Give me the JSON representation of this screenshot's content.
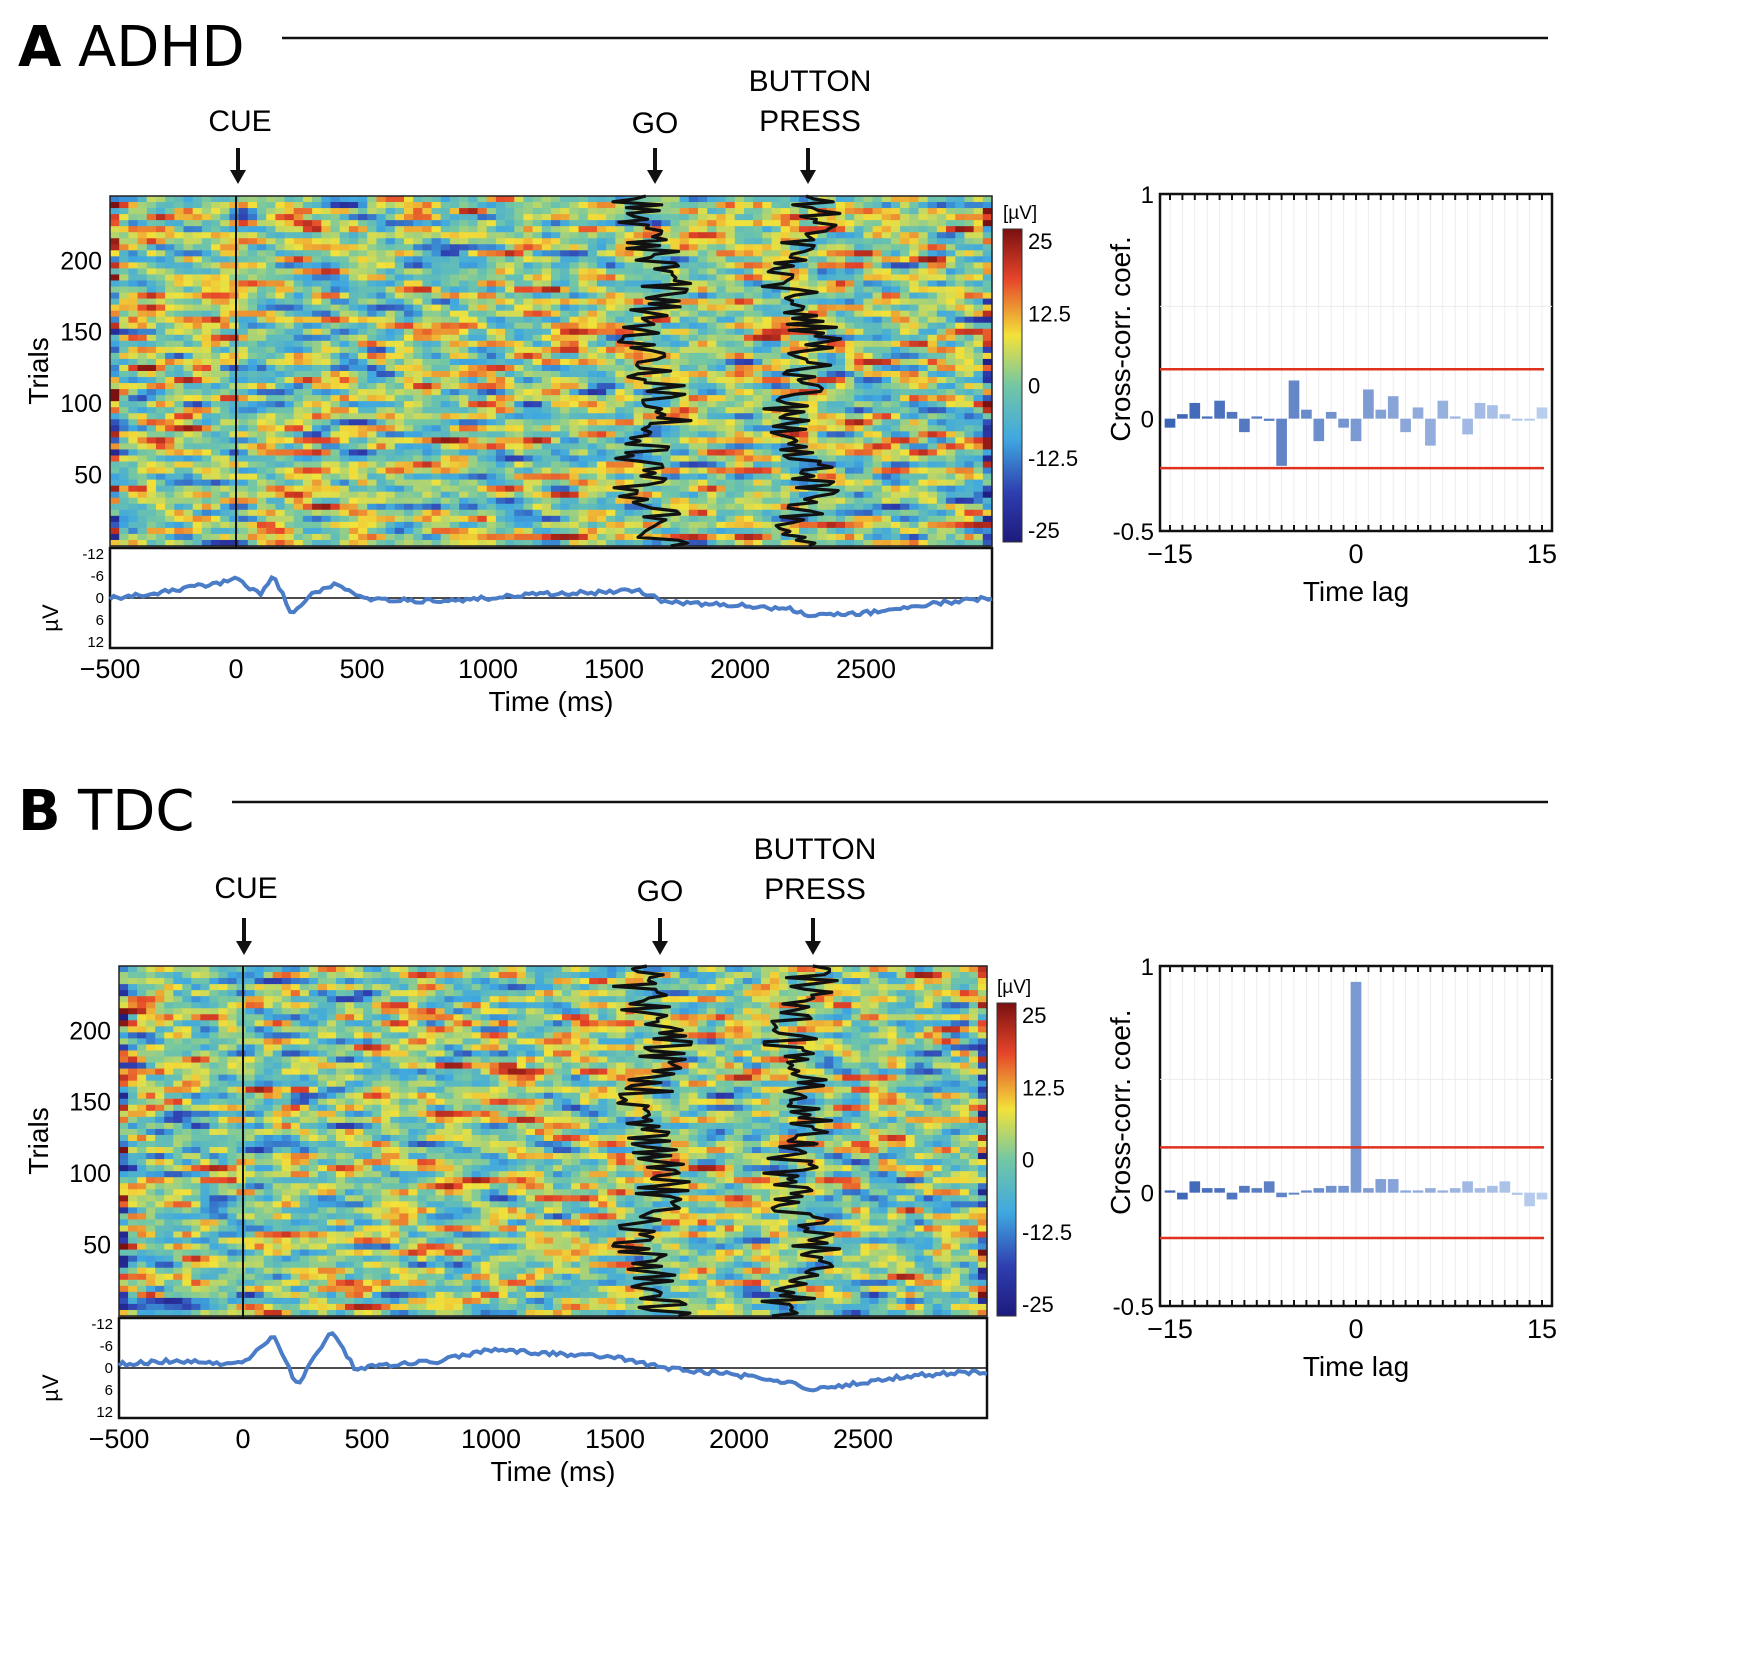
{
  "panels": [
    {
      "letter": "A",
      "group": "ADHD",
      "events": {
        "cue": "CUE",
        "go": "GO",
        "button_line1": "BUTTON",
        "button_line2": "PRESS"
      },
      "colorbar": {
        "unit": "[µV]",
        "ticks": [
          "25",
          "12.5",
          "0",
          "-12.5",
          "-25"
        ]
      },
      "erp": {
        "ylabel": "µV",
        "ticks": [
          "-12",
          "-6",
          "0",
          "6",
          "12"
        ]
      },
      "colors": {
        "go_line": "#111111",
        "erp_line": "#4a7cc8",
        "threshold": "#e0301e",
        "bars_dark": "#3b64b5",
        "bars_light": "#b9cdee"
      }
    },
    {
      "letter": "B",
      "group": "TDC",
      "events": {
        "cue": "CUE",
        "go": "GO",
        "button_line1": "BUTTON",
        "button_line2": "PRESS"
      },
      "colorbar": {
        "unit": "[µV]",
        "ticks": [
          "25",
          "12.5",
          "0",
          "-12.5",
          "-25"
        ]
      },
      "erp": {
        "ylabel": "µV",
        "ticks": [
          "-12",
          "-6",
          "0",
          "6",
          "12"
        ]
      },
      "colors": {
        "go_line": "#111111",
        "erp_line": "#4a7cc8",
        "threshold": "#e0301e",
        "bars_dark": "#3b64b5",
        "bars_light": "#b9cdee"
      }
    }
  ],
  "chart_data": [
    {
      "type": "heatmap",
      "panel": "A",
      "title": "ADHD",
      "xlabel": "Time (ms)",
      "ylabel": "Trials",
      "xlim": [
        -500,
        3000
      ],
      "ylim": [
        0,
        245
      ],
      "x_ticks": [
        "-500",
        "0",
        "500",
        "1000",
        "1500",
        "2000",
        "2500"
      ],
      "y_ticks": [
        "50",
        "100",
        "150",
        "200"
      ],
      "color_range": [
        -25,
        25
      ],
      "events_ms": {
        "cue": 0,
        "go_mean": 1650,
        "button_press_mean": 2250
      },
      "erp_trace": {
        "ylim": [
          12,
          -12
        ],
        "x": [
          -500,
          -250,
          0,
          100,
          150,
          220,
          300,
          400,
          500,
          800,
          1200,
          1600,
          1700,
          2000,
          2200,
          2300,
          2500,
          2700,
          3000
        ],
        "y": [
          0,
          -2,
          -5,
          -1,
          -6,
          4,
          -1,
          -4,
          0,
          1,
          -1,
          -2,
          1,
          2,
          3,
          5,
          4,
          2,
          0
        ]
      }
    },
    {
      "type": "bar",
      "panel": "A",
      "xlabel": "Time lag",
      "ylabel": "Cross-corr. coef.",
      "xlim": [
        -15,
        15
      ],
      "ylim": [
        -0.5,
        1
      ],
      "x_ticks": [
        "-15",
        "0",
        "15"
      ],
      "y_ticks": [
        "1",
        "0",
        "-0.5"
      ],
      "threshold": [
        0.22,
        -0.22
      ],
      "lags": [
        -15,
        -14,
        -13,
        -12,
        -11,
        -10,
        -9,
        -8,
        -7,
        -6,
        -5,
        -4,
        -3,
        -2,
        -1,
        0,
        1,
        2,
        3,
        4,
        5,
        6,
        7,
        8,
        9,
        10,
        11,
        12,
        13,
        14,
        15
      ],
      "values": [
        -0.04,
        0.02,
        0.07,
        0.01,
        0.08,
        0.03,
        -0.06,
        0.01,
        -0.01,
        -0.21,
        0.17,
        0.04,
        -0.1,
        0.03,
        -0.04,
        -0.1,
        0.13,
        0.04,
        0.1,
        -0.06,
        0.05,
        -0.12,
        0.08,
        0.01,
        -0.07,
        0.07,
        0.06,
        0.02,
        0.0,
        0.0,
        0.05
      ]
    },
    {
      "type": "heatmap",
      "panel": "B",
      "title": "TDC",
      "xlabel": "Time (ms)",
      "ylabel": "Trials",
      "xlim": [
        -500,
        3000
      ],
      "ylim": [
        0,
        245
      ],
      "x_ticks": [
        "-500",
        "0",
        "500",
        "1000",
        "1500",
        "2000",
        "2500"
      ],
      "y_ticks": [
        "50",
        "100",
        "150",
        "200"
      ],
      "color_range": [
        -25,
        25
      ],
      "events_ms": {
        "cue": 0,
        "go_mean": 1650,
        "button_press_mean": 2250
      },
      "erp_trace": {
        "ylim": [
          12,
          -12
        ],
        "x": [
          -500,
          -250,
          0,
          120,
          220,
          280,
          360,
          450,
          600,
          800,
          1000,
          1200,
          1500,
          1700,
          2000,
          2200,
          2300,
          2500,
          2700,
          3000
        ],
        "y": [
          -1,
          -2,
          -1,
          -9,
          5,
          -2,
          -10,
          0,
          -1,
          -2,
          -5,
          -4,
          -3,
          0,
          2,
          4,
          6,
          4,
          2,
          1
        ]
      }
    },
    {
      "type": "bar",
      "panel": "B",
      "xlabel": "Time lag",
      "ylabel": "Cross-corr. coef.",
      "xlim": [
        -15,
        15
      ],
      "ylim": [
        -0.5,
        1
      ],
      "x_ticks": [
        "-15",
        "0",
        "15"
      ],
      "y_ticks": [
        "1",
        "0",
        "-0.5"
      ],
      "threshold": [
        0.2,
        -0.2
      ],
      "lags": [
        -15,
        -14,
        -13,
        -12,
        -11,
        -10,
        -9,
        -8,
        -7,
        -6,
        -5,
        -4,
        -3,
        -2,
        -1,
        0,
        1,
        2,
        3,
        4,
        5,
        6,
        7,
        8,
        9,
        10,
        11,
        12,
        13,
        14,
        15
      ],
      "values": [
        0.01,
        -0.03,
        0.05,
        0.02,
        0.02,
        -0.03,
        0.03,
        0.02,
        0.05,
        -0.02,
        0.0,
        0.01,
        0.02,
        0.03,
        0.03,
        0.93,
        0.02,
        0.06,
        0.06,
        0.01,
        0.01,
        0.02,
        0.01,
        0.02,
        0.05,
        0.02,
        0.03,
        0.05,
        -0.01,
        -0.06,
        -0.03
      ]
    }
  ]
}
